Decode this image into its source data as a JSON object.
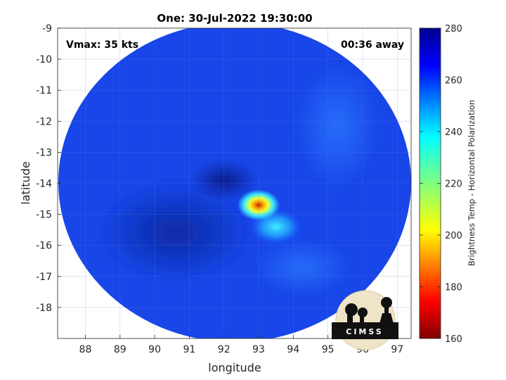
{
  "chart_data": {
    "type": "heatmap",
    "title": "One: 30-Jul-2022 19:30:00",
    "xlabel": "longitude",
    "ylabel": "latitude",
    "xlim": [
      87.2,
      97.4
    ],
    "ylim": [
      -19.0,
      -9.0
    ],
    "x_ticks": [
      "88",
      "89",
      "90",
      "91",
      "92",
      "93",
      "94",
      "95",
      "96",
      "97"
    ],
    "y_ticks": [
      "-9",
      "-10",
      "-11",
      "-12",
      "-13",
      "-14",
      "-15",
      "-16",
      "-17",
      "-18"
    ],
    "grid": true,
    "annotations": {
      "left": "Vmax: 35 kts",
      "right": "00:36 away"
    },
    "colorbar": {
      "label": "Brightness Temp - Horizontal Polarization",
      "min": 160,
      "max": 280,
      "ticks": [
        "280",
        "260",
        "240",
        "220",
        "200",
        "180",
        "160"
      ],
      "colormap": "jet"
    },
    "field": {
      "swath_center": [
        92.3,
        -14.2
      ],
      "background_temp": 268,
      "features": [
        {
          "name": "eye",
          "lon": 92.0,
          "lat": -13.9,
          "temp": 275
        },
        {
          "name": "convective-core",
          "lon": 93.0,
          "lat": -14.7,
          "temp": 192
        },
        {
          "name": "rain-band",
          "lon": 93.5,
          "lat": -15.4,
          "temp": 240
        },
        {
          "name": "outer-band",
          "lon": 94.2,
          "lat": -16.8,
          "temp": 255
        }
      ]
    },
    "logo": "CIMSS"
  }
}
